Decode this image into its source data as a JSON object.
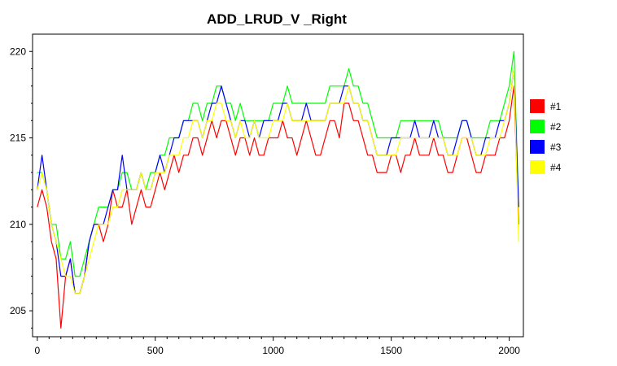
{
  "chart_data": {
    "type": "line",
    "title": "ADD_LRUD_V _Right",
    "xlabel": "",
    "ylabel": "",
    "xlim": [
      -20,
      2060
    ],
    "ylim": [
      203.5,
      221.0
    ],
    "x_ticks": [
      0,
      500,
      1000,
      1500,
      2000
    ],
    "y_ticks": [
      205,
      210,
      215,
      220
    ],
    "grid": false,
    "legend_position": "right",
    "series": [
      {
        "name": "#1",
        "color": "#ff0000",
        "x": [
          0,
          20,
          40,
          60,
          80,
          100,
          120,
          140,
          160,
          180,
          200,
          220,
          240,
          260,
          280,
          300,
          320,
          340,
          360,
          380,
          400,
          420,
          440,
          460,
          480,
          500,
          520,
          540,
          560,
          580,
          600,
          620,
          640,
          660,
          680,
          700,
          720,
          740,
          760,
          780,
          800,
          820,
          840,
          860,
          880,
          900,
          920,
          940,
          960,
          980,
          1000,
          1020,
          1040,
          1060,
          1080,
          1100,
          1120,
          1140,
          1160,
          1180,
          1200,
          1220,
          1240,
          1260,
          1280,
          1300,
          1320,
          1340,
          1360,
          1380,
          1400,
          1420,
          1440,
          1460,
          1480,
          1500,
          1520,
          1540,
          1560,
          1580,
          1600,
          1620,
          1640,
          1660,
          1680,
          1700,
          1720,
          1740,
          1760,
          1780,
          1800,
          1820,
          1840,
          1860,
          1880,
          1900,
          1920,
          1940,
          1960,
          1980,
          2000,
          2020,
          2040
        ],
        "y": [
          211,
          212,
          211,
          209,
          208,
          204,
          207,
          208,
          206,
          206,
          207,
          209,
          210,
          210,
          209,
          210,
          212,
          211,
          211,
          212,
          210,
          211,
          212,
          211,
          211,
          212,
          213,
          212,
          213,
          214,
          213,
          214,
          214,
          215,
          215,
          214,
          215,
          216,
          215,
          216,
          216,
          215,
          214,
          215,
          215,
          214,
          215,
          214,
          214,
          215,
          215,
          215,
          216,
          215,
          215,
          214,
          215,
          216,
          215,
          214,
          214,
          215,
          216,
          216,
          215,
          217,
          217,
          216,
          216,
          215,
          214,
          214,
          213,
          213,
          213,
          214,
          214,
          213,
          214,
          214,
          215,
          214,
          214,
          214,
          215,
          214,
          214,
          213,
          213,
          214,
          215,
          215,
          214,
          213,
          213,
          214,
          214,
          214,
          215,
          215,
          216,
          218,
          210
        ]
      },
      {
        "name": "#2",
        "color": "#00ff00",
        "x": [
          0,
          20,
          40,
          60,
          80,
          100,
          120,
          140,
          160,
          180,
          200,
          220,
          240,
          260,
          280,
          300,
          320,
          340,
          360,
          380,
          400,
          420,
          440,
          460,
          480,
          500,
          520,
          540,
          560,
          580,
          600,
          620,
          640,
          660,
          680,
          700,
          720,
          740,
          760,
          780,
          800,
          820,
          840,
          860,
          880,
          900,
          920,
          940,
          960,
          980,
          1000,
          1020,
          1040,
          1060,
          1080,
          1100,
          1120,
          1140,
          1160,
          1180,
          1200,
          1220,
          1240,
          1260,
          1280,
          1300,
          1320,
          1340,
          1360,
          1380,
          1400,
          1420,
          1440,
          1460,
          1480,
          1500,
          1520,
          1540,
          1560,
          1580,
          1600,
          1620,
          1640,
          1660,
          1680,
          1700,
          1720,
          1740,
          1760,
          1780,
          1800,
          1820,
          1840,
          1860,
          1880,
          1900,
          1920,
          1940,
          1960,
          1980,
          2000,
          2020,
          2040
        ],
        "y": [
          213,
          213,
          212,
          210,
          210,
          208,
          208,
          209,
          207,
          207,
          208,
          209,
          210,
          211,
          211,
          211,
          212,
          212,
          213,
          213,
          212,
          212,
          213,
          212,
          213,
          213,
          214,
          214,
          215,
          215,
          215,
          216,
          216,
          217,
          217,
          216,
          217,
          217,
          218,
          218,
          217,
          217,
          216,
          217,
          216,
          216,
          216,
          216,
          216,
          216,
          217,
          217,
          217,
          218,
          217,
          217,
          217,
          217,
          217,
          217,
          217,
          217,
          218,
          218,
          218,
          218,
          219,
          218,
          218,
          217,
          217,
          216,
          215,
          215,
          215,
          215,
          215,
          216,
          216,
          216,
          216,
          216,
          216,
          216,
          216,
          216,
          215,
          215,
          215,
          215,
          216,
          216,
          215,
          215,
          215,
          215,
          216,
          216,
          216,
          217,
          218,
          220,
          211
        ]
      },
      {
        "name": "#3",
        "color": "#0000ff",
        "x": [
          0,
          20,
          40,
          60,
          80,
          100,
          120,
          140,
          160,
          180,
          200,
          220,
          240,
          260,
          280,
          300,
          320,
          340,
          360,
          380,
          400,
          420,
          440,
          460,
          480,
          500,
          520,
          540,
          560,
          580,
          600,
          620,
          640,
          660,
          680,
          700,
          720,
          740,
          760,
          780,
          800,
          820,
          840,
          860,
          880,
          900,
          920,
          940,
          960,
          980,
          1000,
          1020,
          1040,
          1060,
          1080,
          1100,
          1120,
          1140,
          1160,
          1180,
          1200,
          1220,
          1240,
          1260,
          1280,
          1300,
          1320,
          1340,
          1360,
          1380,
          1400,
          1420,
          1440,
          1460,
          1480,
          1500,
          1520,
          1540,
          1560,
          1580,
          1600,
          1620,
          1640,
          1660,
          1680,
          1700,
          1720,
          1740,
          1760,
          1780,
          1800,
          1820,
          1840,
          1860,
          1880,
          1900,
          1920,
          1940,
          1960,
          1980,
          2000,
          2020,
          2040
        ],
        "y": [
          212,
          214,
          212,
          210,
          209,
          207,
          207,
          208,
          206,
          206,
          207,
          209,
          210,
          210,
          210,
          211,
          212,
          212,
          214,
          212,
          212,
          212,
          213,
          212,
          212,
          213,
          214,
          213,
          214,
          215,
          215,
          216,
          216,
          216,
          216,
          215,
          216,
          217,
          217,
          218,
          217,
          216,
          215,
          216,
          216,
          215,
          216,
          215,
          216,
          216,
          216,
          216,
          217,
          217,
          216,
          216,
          216,
          217,
          216,
          216,
          216,
          216,
          217,
          217,
          217,
          218,
          218,
          217,
          217,
          216,
          216,
          215,
          214,
          214,
          214,
          215,
          215,
          215,
          215,
          215,
          216,
          215,
          215,
          215,
          216,
          215,
          215,
          214,
          214,
          215,
          216,
          216,
          215,
          214,
          214,
          215,
          215,
          215,
          216,
          216,
          217,
          219,
          211
        ]
      },
      {
        "name": "#4",
        "color": "#ffff00",
        "x": [
          0,
          20,
          40,
          60,
          80,
          100,
          120,
          140,
          160,
          180,
          200,
          220,
          240,
          260,
          280,
          300,
          320,
          340,
          360,
          380,
          400,
          420,
          440,
          460,
          480,
          500,
          520,
          540,
          560,
          580,
          600,
          620,
          640,
          660,
          680,
          700,
          720,
          740,
          760,
          780,
          800,
          820,
          840,
          860,
          880,
          900,
          920,
          940,
          960,
          980,
          1000,
          1020,
          1040,
          1060,
          1080,
          1100,
          1120,
          1140,
          1160,
          1180,
          1200,
          1220,
          1240,
          1260,
          1280,
          1300,
          1320,
          1340,
          1360,
          1380,
          1400,
          1420,
          1440,
          1460,
          1480,
          1500,
          1520,
          1540,
          1560,
          1580,
          1600,
          1620,
          1640,
          1660,
          1680,
          1700,
          1720,
          1740,
          1760,
          1780,
          1800,
          1820,
          1840,
          1860,
          1880,
          1900,
          1920,
          1940,
          1960,
          1980,
          2000,
          2020,
          2040
        ],
        "y": [
          212,
          213,
          212,
          210,
          209,
          208,
          207,
          207,
          206,
          206,
          207,
          208,
          209,
          210,
          210,
          210,
          211,
          211,
          212,
          212,
          212,
          212,
          213,
          212,
          212,
          213,
          213,
          213,
          214,
          214,
          214,
          215,
          215,
          216,
          216,
          215,
          216,
          216,
          217,
          217,
          216,
          216,
          215,
          216,
          215,
          215,
          216,
          215,
          215,
          215,
          216,
          216,
          216,
          217,
          216,
          216,
          216,
          216,
          216,
          216,
          216,
          216,
          217,
          217,
          217,
          217,
          218,
          217,
          217,
          216,
          216,
          215,
          214,
          214,
          214,
          214,
          214,
          215,
          215,
          215,
          215,
          215,
          215,
          215,
          215,
          215,
          215,
          214,
          214,
          214,
          215,
          215,
          215,
          214,
          214,
          214,
          215,
          215,
          215,
          216,
          217,
          219,
          209
        ]
      }
    ]
  }
}
